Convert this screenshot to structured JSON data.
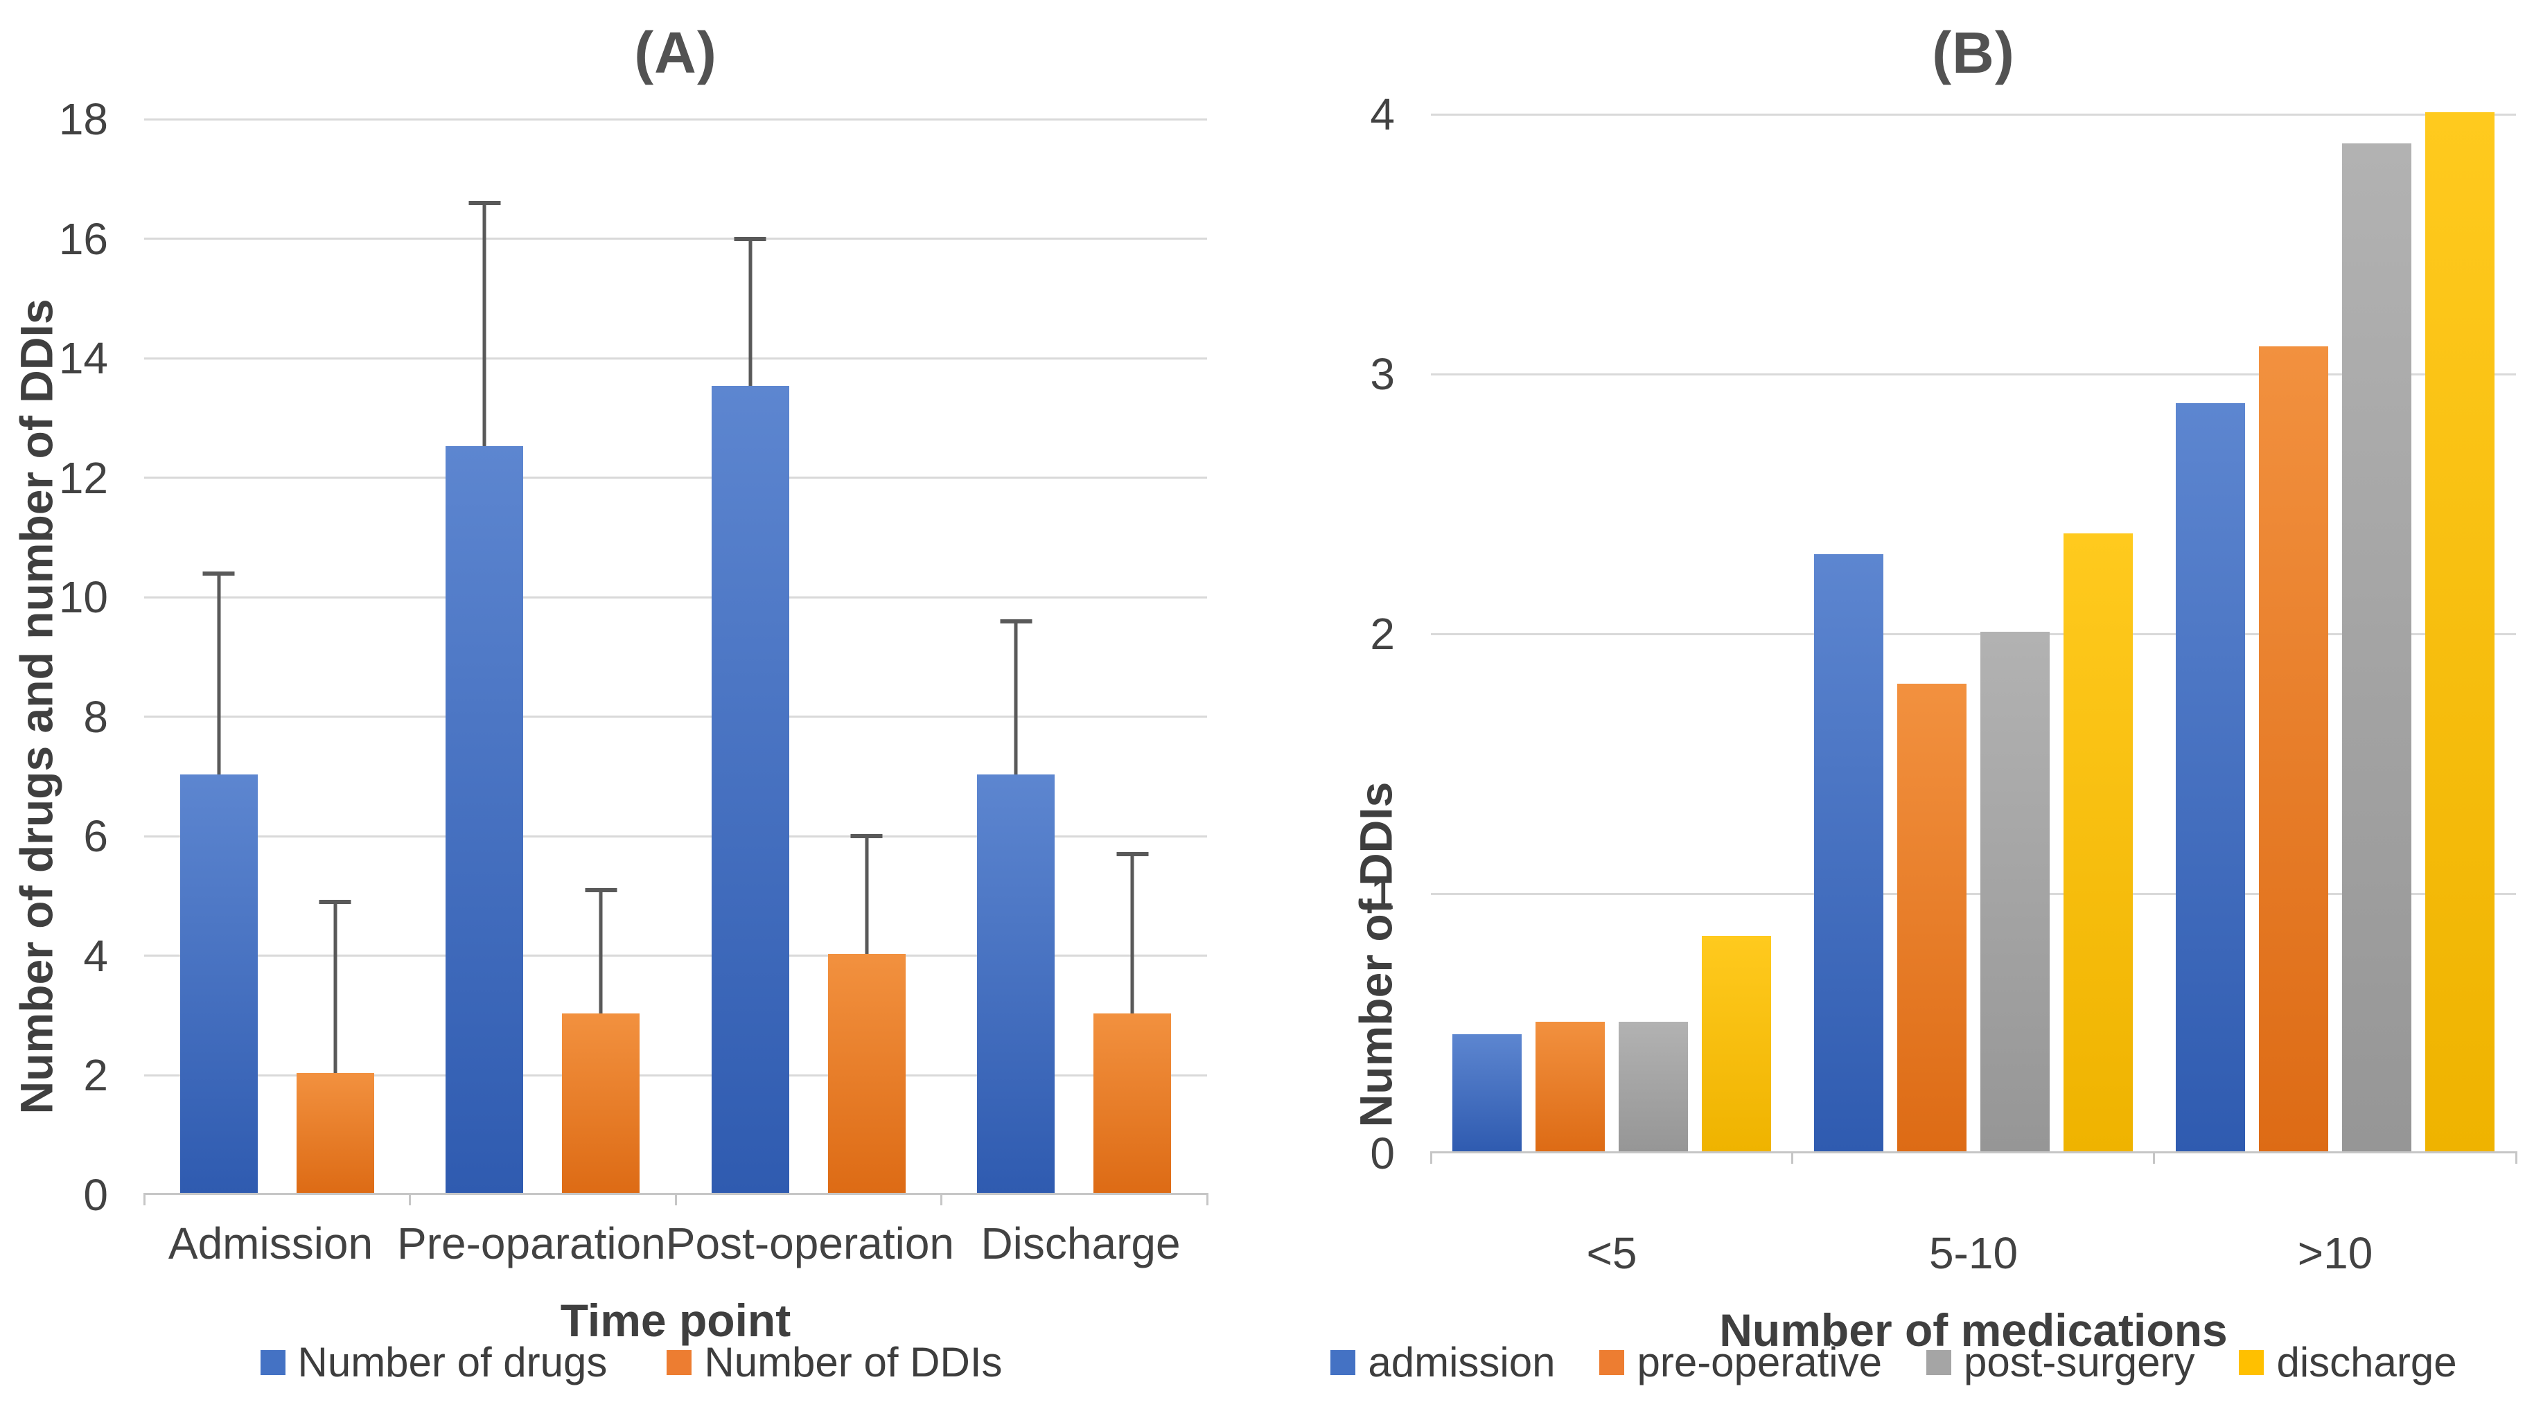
{
  "figure": {
    "background": "#ffffff",
    "text_color": "#3f3f3f",
    "gridline_color": "#d9d9d9",
    "axis_line_color": "#c6c6c6",
    "error_bar_color": "#595959"
  },
  "chart_data": [
    {
      "type": "bar",
      "title": "(A)",
      "categories": [
        "Admission",
        "Pre-oparation",
        "Post-operation",
        "Discharge"
      ],
      "series": [
        {
          "name": "Number of drugs",
          "color": "#4472C4",
          "color_top": "#5d86d0",
          "color_bottom": "#2f5bb0",
          "values": [
            7,
            12.5,
            13.5,
            7
          ],
          "error_top": [
            10.4,
            16.6,
            16.0,
            9.6
          ]
        },
        {
          "name": "Number of DDIs",
          "color": "#ED7D31",
          "color_top": "#f2913f",
          "color_bottom": "#dd6b15",
          "values": [
            2,
            3,
            4,
            3
          ],
          "error_top": [
            4.9,
            5.1,
            6.0,
            5.7
          ]
        }
      ],
      "xlabel": "Time point",
      "ylabel": "Number of drugs and number of DDIs",
      "ylim": [
        0,
        18
      ],
      "ytick_step": 2,
      "grid": true,
      "legend_position": "bottom"
    },
    {
      "type": "bar",
      "title": "(B)",
      "categories": [
        "<5",
        "5-10",
        ">10"
      ],
      "series": [
        {
          "name": "admission",
          "color": "#4472C4",
          "color_top": "#5d86d0",
          "color_bottom": "#2f5bb0",
          "values": [
            0.45,
            2.3,
            2.88
          ]
        },
        {
          "name": "pre-operative",
          "color": "#ED7D31",
          "color_top": "#f2913f",
          "color_bottom": "#dd6b15",
          "values": [
            0.5,
            1.8,
            3.1
          ]
        },
        {
          "name": "post-surgery",
          "color": "#A5A5A5",
          "color_top": "#b2b2b2",
          "color_bottom": "#969696",
          "values": [
            0.5,
            2.0,
            3.88
          ]
        },
        {
          "name": "discharge",
          "color": "#FFC000",
          "color_top": "#ffca1e",
          "color_bottom": "#efb300",
          "values": [
            0.83,
            2.38,
            4.0
          ]
        }
      ],
      "xlabel": "Number of medications",
      "ylabel": "Number of DDIs",
      "ylim": [
        0,
        4
      ],
      "ytick_step": 1,
      "grid": true,
      "legend_position": "bottom"
    }
  ]
}
